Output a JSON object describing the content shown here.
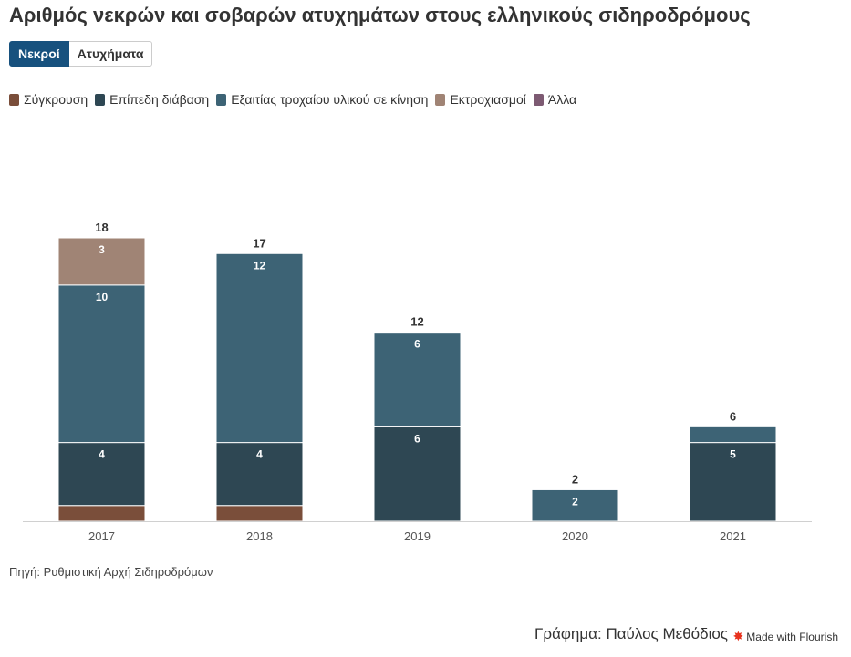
{
  "title": "Αριθμός νεκρών και σοβαρών ατυχημάτων στους ελληνικούς σιδηροδρόμους",
  "tabs": [
    {
      "label": "Νεκροί",
      "active": true
    },
    {
      "label": "Ατυχήματα",
      "active": false
    }
  ],
  "legend": [
    {
      "label": "Σύγκρουση",
      "color": "#7a4e3a"
    },
    {
      "label": "Επίπεδη διάβαση",
      "color": "#2e4753"
    },
    {
      "label": "Εξαιτίας τροχαίου υλικού σε κίνηση",
      "color": "#3d6375"
    },
    {
      "label": "Εκτροχιασμοί",
      "color": "#a08475"
    },
    {
      "label": "Άλλα",
      "color": "#7d5a72"
    }
  ],
  "chart_data": {
    "type": "bar",
    "stacked": true,
    "categories": [
      "2017",
      "2018",
      "2019",
      "2020",
      "2021"
    ],
    "series": [
      {
        "name": "Σύγκρουση",
        "color": "#7a4e3a",
        "values": [
          1,
          1,
          0,
          0,
          0
        ]
      },
      {
        "name": "Επίπεδη διάβαση",
        "color": "#2e4753",
        "values": [
          4,
          4,
          6,
          0,
          5
        ]
      },
      {
        "name": "Εξαιτίας τροχαίου υλικού σε κίνηση",
        "color": "#3d6375",
        "values": [
          10,
          12,
          6,
          2,
          1
        ]
      },
      {
        "name": "Εκτροχιασμοί",
        "color": "#a08475",
        "values": [
          3,
          0,
          0,
          0,
          0
        ]
      },
      {
        "name": "Άλλα",
        "color": "#7d5a72",
        "values": [
          0,
          0,
          0,
          0,
          0
        ]
      }
    ],
    "totals": [
      18,
      17,
      12,
      2,
      6
    ],
    "ylim": [
      0,
      18
    ],
    "grid": false,
    "legend_position": "top-left"
  },
  "source": "Πηγή: Ρυθμιστική Αρχή Σιδηροδρόμων",
  "credit": "Γράφημα: Παύλος Μεθόδιος",
  "flourish_label": "Made with Flourish"
}
